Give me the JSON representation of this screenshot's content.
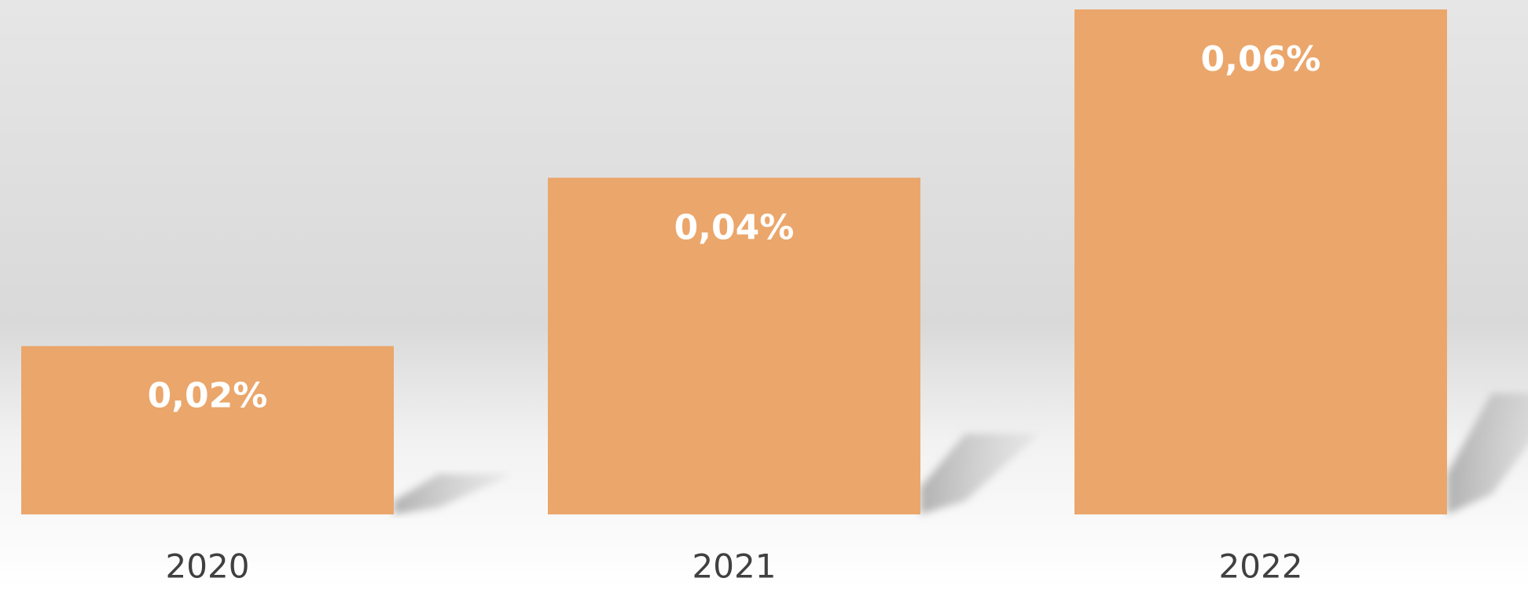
{
  "chart_data": {
    "type": "bar",
    "categories": [
      "2020",
      "2021",
      "2022"
    ],
    "values": [
      0.02,
      0.04,
      0.06
    ],
    "value_labels": [
      "0,02%",
      "0,04%",
      "0,06%"
    ],
    "color": "#eba66b",
    "ylim": [
      0,
      0.06
    ]
  }
}
